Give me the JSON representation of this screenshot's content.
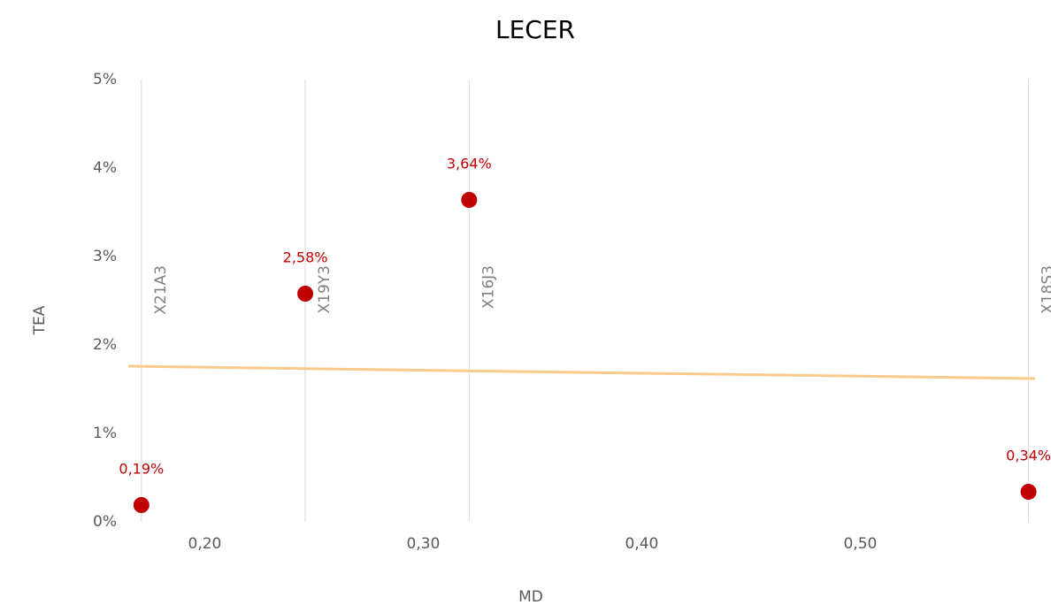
{
  "chart_data": {
    "type": "scatter",
    "title": "LECER",
    "xlabel": "MD",
    "ylabel": "TEA",
    "series": [
      {
        "color": "#c00000",
        "x": [
          0.171,
          0.246,
          0.321,
          0.577
        ],
        "values": [
          0.19,
          2.58,
          3.64,
          0.34
        ],
        "value_labels": [
          "0,19%",
          "2,58%",
          "3,64%",
          "0,34%"
        ],
        "point_names": [
          "X21A3",
          "X19Y3",
          "X16J3",
          "X18S3"
        ]
      }
    ],
    "trendline": {
      "color": "#f8cb8c",
      "x": [
        0.165,
        0.58
      ],
      "values": [
        1.76,
        1.62
      ]
    },
    "xlim": [
      0.165,
      0.58
    ],
    "xticks": [
      {
        "value": 0.2,
        "label": "0,20"
      },
      {
        "value": 0.3,
        "label": "0,30"
      },
      {
        "value": 0.4,
        "label": "0,40"
      },
      {
        "value": 0.5,
        "label": "0,50"
      }
    ],
    "ylim": [
      0,
      5
    ],
    "yticks": [
      {
        "value": 0,
        "label": "0%"
      },
      {
        "value": 1,
        "label": "1%"
      },
      {
        "value": 2,
        "label": "2%"
      },
      {
        "value": 3,
        "label": "3%"
      },
      {
        "value": 4,
        "label": "4%"
      },
      {
        "value": 5,
        "label": "5%"
      }
    ]
  }
}
